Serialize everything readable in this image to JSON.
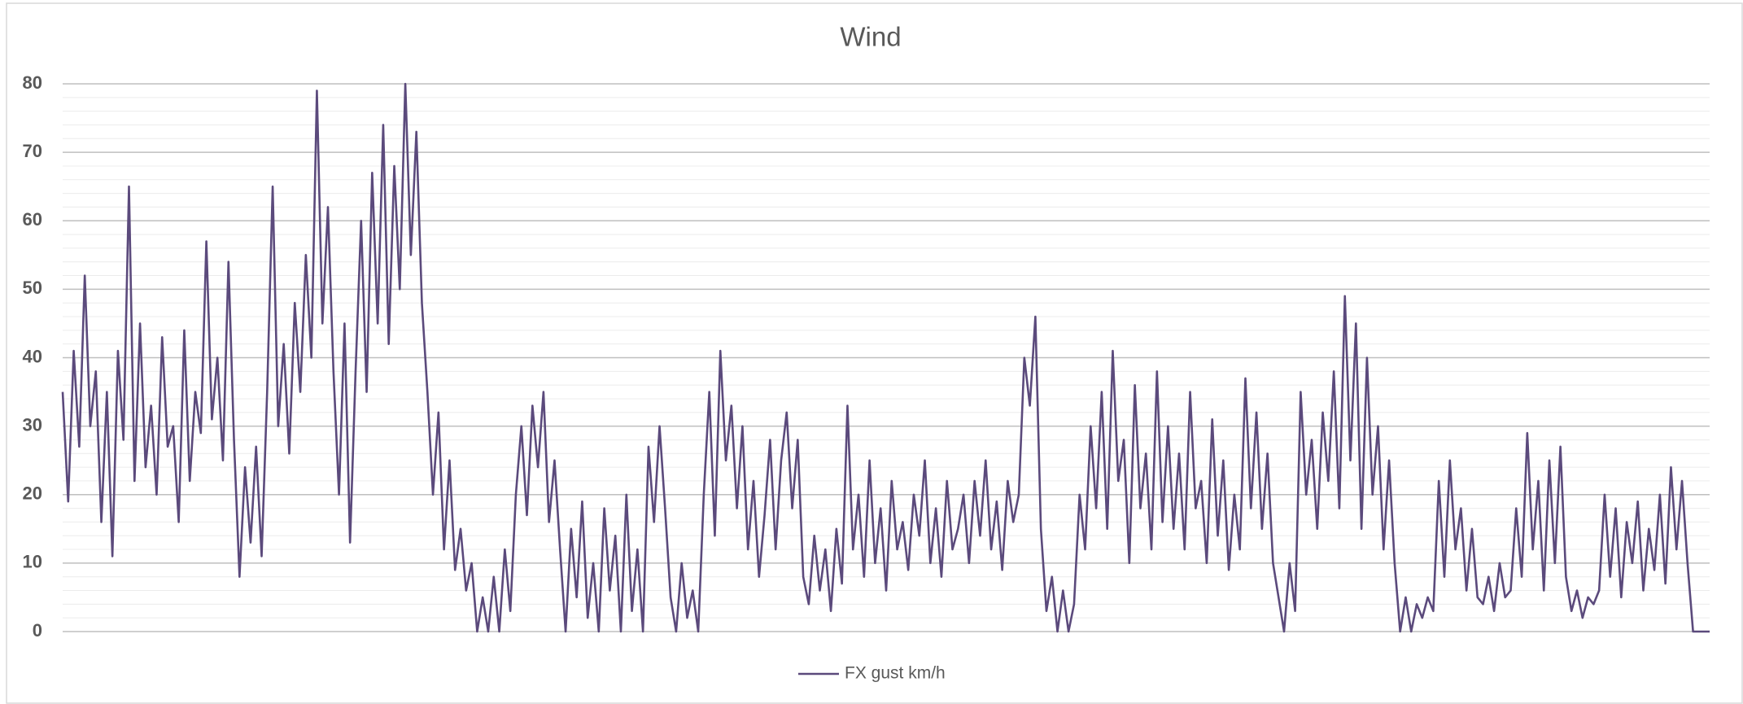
{
  "chart_data": {
    "type": "line",
    "title": "Wind",
    "series": [
      {
        "name": "FX gust km/h",
        "color": "#5b4a7c",
        "values": [
          35,
          19,
          41,
          27,
          52,
          30,
          38,
          16,
          35,
          11,
          41,
          28,
          65,
          22,
          45,
          24,
          33,
          20,
          43,
          27,
          30,
          16,
          44,
          22,
          35,
          29,
          57,
          31,
          40,
          25,
          54,
          28,
          8,
          24,
          13,
          27,
          11,
          35,
          65,
          30,
          42,
          26,
          48,
          35,
          55,
          40,
          79,
          45,
          62,
          38,
          20,
          45,
          13,
          38,
          60,
          35,
          67,
          45,
          74,
          42,
          68,
          50,
          80,
          55,
          73,
          48,
          35,
          20,
          32,
          12,
          25,
          9,
          15,
          6,
          10,
          0,
          5,
          0,
          8,
          0,
          12,
          3,
          20,
          30,
          17,
          33,
          24,
          35,
          16,
          25,
          12,
          0,
          15,
          5,
          19,
          2,
          10,
          0,
          18,
          6,
          14,
          0,
          20,
          3,
          12,
          0,
          27,
          16,
          30,
          18,
          5,
          0,
          10,
          2,
          6,
          0,
          20,
          35,
          14,
          41,
          25,
          33,
          18,
          30,
          12,
          22,
          8,
          17,
          28,
          12,
          25,
          32,
          18,
          28,
          8,
          4,
          14,
          6,
          12,
          3,
          15,
          7,
          33,
          12,
          20,
          8,
          25,
          10,
          18,
          6,
          22,
          12,
          16,
          9,
          20,
          14,
          25,
          10,
          18,
          8,
          22,
          12,
          15,
          20,
          10,
          22,
          14,
          25,
          12,
          19,
          9,
          22,
          16,
          20,
          40,
          33,
          46,
          15,
          3,
          8,
          0,
          6,
          0,
          4,
          20,
          12,
          30,
          18,
          35,
          15,
          41,
          22,
          28,
          10,
          36,
          18,
          26,
          12,
          38,
          16,
          30,
          15,
          26,
          12,
          35,
          18,
          22,
          10,
          31,
          14,
          25,
          9,
          20,
          12,
          37,
          18,
          32,
          15,
          26,
          10,
          5,
          0,
          10,
          3,
          35,
          20,
          28,
          15,
          32,
          22,
          38,
          18,
          49,
          25,
          45,
          15,
          40,
          20,
          30,
          12,
          25,
          10,
          0,
          5,
          0,
          4,
          2,
          5,
          3,
          22,
          8,
          25,
          12,
          18,
          6,
          15,
          5,
          4,
          8,
          3,
          10,
          5,
          6,
          18,
          8,
          29,
          12,
          22,
          6,
          25,
          10,
          27,
          8,
          3,
          6,
          2,
          5,
          4,
          6,
          20,
          8,
          18,
          5,
          16,
          10,
          19,
          6,
          15,
          9,
          20,
          7,
          24,
          12,
          22,
          10,
          0,
          0,
          0,
          0
        ]
      }
    ],
    "ylim": [
      0,
      80
    ],
    "yticks": [
      0,
      10,
      20,
      30,
      40,
      50,
      60,
      70,
      80
    ],
    "grid": true,
    "minor_grid": true,
    "legend": "bottom"
  }
}
